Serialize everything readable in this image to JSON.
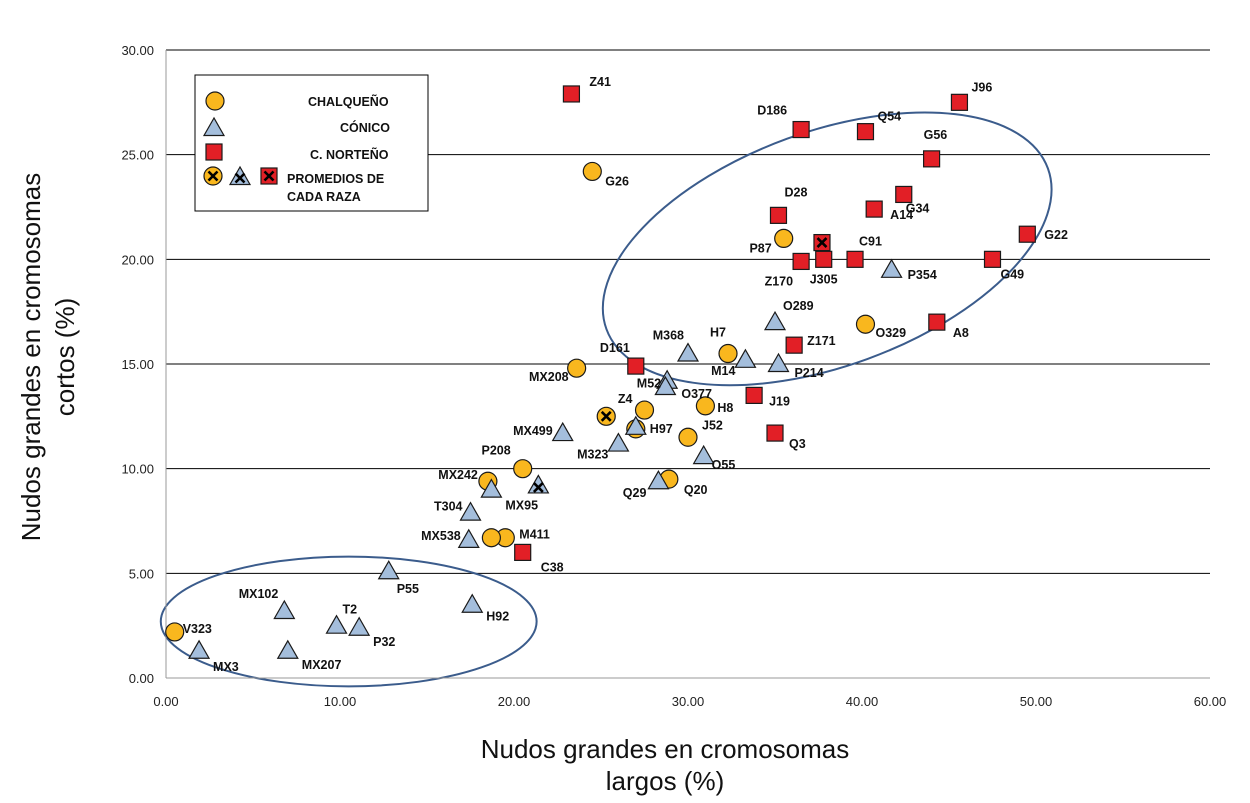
{
  "chart_data": {
    "type": "scatter",
    "xlabel": [
      "Nudos grandes en cromosomas",
      "largos (%)"
    ],
    "ylabel": [
      "Nudos grandes en cromosomas",
      "cortos (%)"
    ],
    "xlim": [
      0,
      60
    ],
    "ylim": [
      0,
      30
    ],
    "xticks": [
      "0.00",
      "10.00",
      "20.00",
      "30.00",
      "40.00",
      "50.00",
      "60.00"
    ],
    "yticks": [
      "0.00",
      "5.00",
      "10.00",
      "15.00",
      "20.00",
      "25.00",
      "30.00"
    ],
    "grid": "horizontal",
    "legend_position": "top-left",
    "legend": {
      "chalqueno": "CHALQUEÑO",
      "conico": "CÓNICO",
      "norteno": "C. NORTEÑO",
      "promedios_line1": "PROMEDIOS DE",
      "promedios_line2": "CADA RAZA"
    },
    "colors": {
      "chalqueno": "#F9B71E",
      "conico": "#A4BEDC",
      "norteno": "#E21F26",
      "ellipse": "#3B5C8C",
      "marker_edge": "#1a1a1a"
    },
    "ellipses": [
      {
        "center": [
          10.5,
          2.7
        ],
        "rx": 10.8,
        "ry": 3.1,
        "rotation_deg": 0
      },
      {
        "center": [
          38.0,
          20.5
        ],
        "rx": 13.5,
        "ry": 5.6,
        "rotation_deg": -20
      }
    ],
    "series": [
      {
        "name": "CHALQUEÑO",
        "marker": "circle",
        "points": [
          {
            "label": "G26",
            "x": 24.5,
            "y": 24.2
          },
          {
            "label": "P87",
            "x": 35.5,
            "y": 21.0
          },
          {
            "label": "O329",
            "x": 40.2,
            "y": 16.9
          },
          {
            "label": "H7",
            "x": 32.3,
            "y": 15.5
          },
          {
            "label": "MX208",
            "x": 23.6,
            "y": 14.8
          },
          {
            "label": "Z4",
            "x": 27.5,
            "y": 12.8
          },
          {
            "label": "H8",
            "x": 31.0,
            "y": 13.0
          },
          {
            "label": "J52",
            "x": 30.0,
            "y": 11.5
          },
          {
            "label": "",
            "x": 27.0,
            "y": 11.9
          },
          {
            "label": "P208",
            "x": 20.5,
            "y": 10.0
          },
          {
            "label": "MX242",
            "x": 18.5,
            "y": 9.4
          },
          {
            "label": "Q20",
            "x": 28.9,
            "y": 9.5
          },
          {
            "label": "M411",
            "x": 19.5,
            "y": 6.7
          },
          {
            "label": "",
            "x": 18.7,
            "y": 6.7
          },
          {
            "label": "V323",
            "x": 0.5,
            "y": 2.2
          }
        ]
      },
      {
        "name": "CÓNICO",
        "marker": "triangle",
        "points": [
          {
            "label": "P354",
            "x": 41.7,
            "y": 19.5
          },
          {
            "label": "O289",
            "x": 35.0,
            "y": 17.0
          },
          {
            "label": "M368",
            "x": 30.0,
            "y": 15.5
          },
          {
            "label": "M14",
            "x": 33.3,
            "y": 15.2
          },
          {
            "label": "P214",
            "x": 35.2,
            "y": 15.0
          },
          {
            "label": "M52",
            "x": 28.8,
            "y": 14.2
          },
          {
            "label": "O377",
            "x": 28.7,
            "y": 13.9
          },
          {
            "label": "H97",
            "x": 27.0,
            "y": 12.0
          },
          {
            "label": "MX499",
            "x": 22.8,
            "y": 11.7
          },
          {
            "label": "M323",
            "x": 26.0,
            "y": 11.2
          },
          {
            "label": "O55",
            "x": 30.9,
            "y": 10.6
          },
          {
            "label": "Q29",
            "x": 28.3,
            "y": 9.4
          },
          {
            "label": "MX95",
            "x": 18.7,
            "y": 9.0
          },
          {
            "label": "T304",
            "x": 17.5,
            "y": 7.9
          },
          {
            "label": "MX538",
            "x": 17.4,
            "y": 6.6
          },
          {
            "label": "P55",
            "x": 12.8,
            "y": 5.1
          },
          {
            "label": "H92",
            "x": 17.6,
            "y": 3.5
          },
          {
            "label": "MX102",
            "x": 6.8,
            "y": 3.2
          },
          {
            "label": "T2",
            "x": 9.8,
            "y": 2.5
          },
          {
            "label": "P32",
            "x": 11.1,
            "y": 2.4
          },
          {
            "label": "MX3",
            "x": 1.9,
            "y": 1.3
          },
          {
            "label": "MX207",
            "x": 7.0,
            "y": 1.3
          }
        ]
      },
      {
        "name": "C. NORTEÑO",
        "marker": "square",
        "points": [
          {
            "label": "Z41",
            "x": 23.3,
            "y": 27.9
          },
          {
            "label": "J96",
            "x": 45.6,
            "y": 27.5
          },
          {
            "label": "D186",
            "x": 36.5,
            "y": 26.2
          },
          {
            "label": "Q54",
            "x": 40.2,
            "y": 26.1
          },
          {
            "label": "G56",
            "x": 44.0,
            "y": 24.8
          },
          {
            "label": "G34",
            "x": 42.4,
            "y": 23.1
          },
          {
            "label": "A14",
            "x": 40.7,
            "y": 22.4
          },
          {
            "label": "D28",
            "x": 35.2,
            "y": 22.1
          },
          {
            "label": "G22",
            "x": 49.5,
            "y": 21.2
          },
          {
            "label": "C91",
            "x": 39.6,
            "y": 20.0
          },
          {
            "label": "J305",
            "x": 37.8,
            "y": 20.0
          },
          {
            "label": "Z170",
            "x": 36.5,
            "y": 19.9
          },
          {
            "label": "G49",
            "x": 47.5,
            "y": 20.0
          },
          {
            "label": "A8",
            "x": 44.3,
            "y": 17.0
          },
          {
            "label": "Z171",
            "x": 36.1,
            "y": 15.9
          },
          {
            "label": "D161",
            "x": 27.0,
            "y": 14.9
          },
          {
            "label": "J19",
            "x": 33.8,
            "y": 13.5
          },
          {
            "label": "Q3",
            "x": 35.0,
            "y": 11.7
          },
          {
            "label": "C38",
            "x": 20.5,
            "y": 6.0
          }
        ]
      },
      {
        "name": "PROMEDIOS DE CADA RAZA",
        "marker": "mean",
        "points": [
          {
            "label": "",
            "group": "chalqueno",
            "x": 25.3,
            "y": 12.5
          },
          {
            "label": "",
            "group": "conico",
            "x": 21.4,
            "y": 9.2
          },
          {
            "label": "",
            "group": "norteno",
            "x": 37.7,
            "y": 20.8
          }
        ]
      }
    ]
  }
}
